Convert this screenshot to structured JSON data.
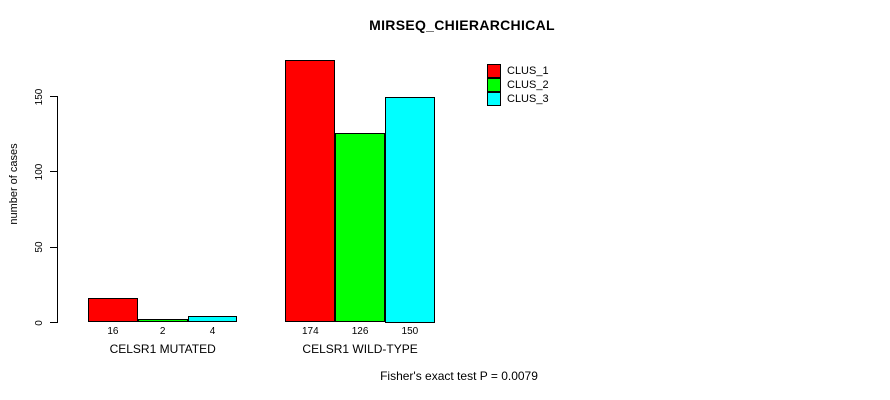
{
  "chart_data": {
    "type": "bar",
    "title": "MIRSEQ_CHIERARCHICAL",
    "ylabel": "number of cases",
    "xlabel": "",
    "categories": [
      "CELSR1 MUTATED",
      "CELSR1 WILD-TYPE"
    ],
    "series": [
      {
        "name": "CLUS_1",
        "color": "#ff0000",
        "values": [
          16,
          174
        ]
      },
      {
        "name": "CLUS_2",
        "color": "#00ff00",
        "values": [
          2,
          126
        ]
      },
      {
        "name": "CLUS_3",
        "color": "#00ffff",
        "values": [
          4,
          150
        ]
      }
    ],
    "yticks": [
      0,
      50,
      100,
      150
    ],
    "ylim": [
      0,
      150
    ],
    "bar_value_labels": [
      [
        16,
        2,
        4
      ],
      [
        174,
        126,
        150
      ]
    ],
    "legend_entries": [
      "CLUS_1",
      "CLUS_2",
      "CLUS_3"
    ],
    "legend_position": "top-right",
    "grid": false,
    "annotation": "Fisher's exact test P = 0.0079",
    "axis_color": "#000000",
    "background_color": "#ffffff"
  }
}
